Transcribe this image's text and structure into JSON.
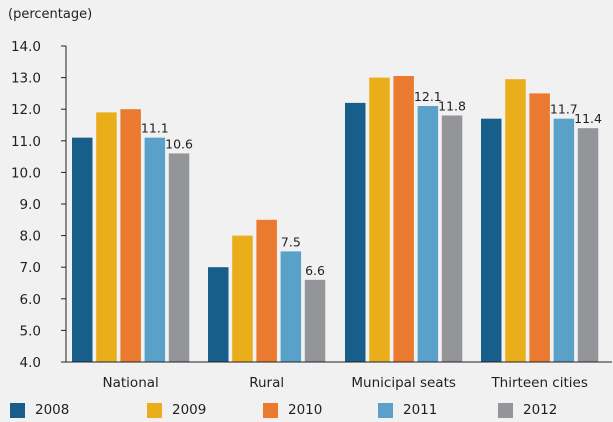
{
  "chart_data": {
    "type": "bar",
    "unit_label": "(percentage)",
    "categories": [
      "National",
      "Rural",
      "Municipal seats",
      "Thirteen cities"
    ],
    "series": [
      {
        "name": "2008",
        "color": "#175e8b",
        "values": [
          11.1,
          7.0,
          12.2,
          11.7
        ]
      },
      {
        "name": "2009",
        "color": "#eaae1b",
        "values": [
          11.9,
          8.0,
          13.0,
          12.95
        ]
      },
      {
        "name": "2010",
        "color": "#ea7a30",
        "values": [
          12.0,
          8.5,
          13.05,
          12.5
        ]
      },
      {
        "name": "2011",
        "color": "#5aa1c9",
        "values": [
          11.1,
          7.5,
          12.1,
          11.7
        ]
      },
      {
        "name": "2012",
        "color": "#939598",
        "values": [
          10.6,
          6.6,
          11.8,
          11.4
        ]
      }
    ],
    "data_labels": {
      "2011": [
        "11.1",
        "7.5",
        "12.1",
        "11.7"
      ],
      "2012": [
        "10.6",
        "6.6",
        "11.8",
        "11.4"
      ]
    },
    "yticks": [
      "4.0",
      "5.0",
      "6.0",
      "7.0",
      "8.0",
      "9.0",
      "10.0",
      "11.0",
      "12.0",
      "13.0",
      "14.0"
    ],
    "ylim": [
      4.0,
      14.0
    ],
    "grid": false,
    "legend_position": "bottom"
  }
}
